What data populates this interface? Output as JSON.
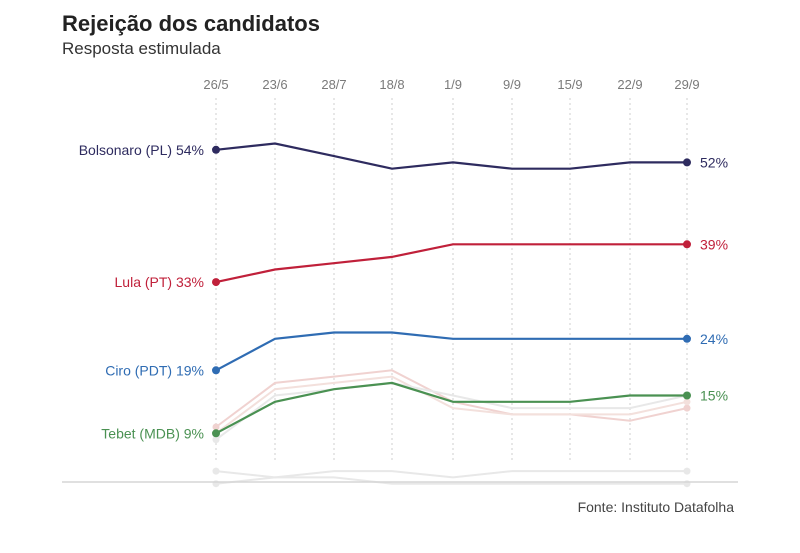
{
  "header": {
    "title": "Rejeição dos candidatos",
    "subtitle": "Resposta estimulada"
  },
  "footer": {
    "source": "Fonte: Instituto Datafolha"
  },
  "chart_data": {
    "type": "line",
    "categories": [
      "26/5",
      "23/6",
      "28/7",
      "18/8",
      "1/9",
      "9/9",
      "15/9",
      "22/9",
      "29/9"
    ],
    "ylim": [
      0,
      60
    ],
    "grid": "vertical dotted",
    "series": [
      {
        "name": "Bolsonaro (PL)",
        "start_label": "Bolsonaro (PL) 54%",
        "end_label": "52%",
        "color": "#2e2b5f",
        "values": [
          54,
          55,
          53,
          51,
          52,
          51,
          51,
          52,
          52
        ]
      },
      {
        "name": "Lula (PT)",
        "start_label": "Lula (PT) 33%",
        "end_label": "39%",
        "color": "#c0203a",
        "values": [
          33,
          35,
          36,
          37,
          39,
          39,
          39,
          39,
          39
        ]
      },
      {
        "name": "Ciro (PDT)",
        "start_label": "Ciro (PDT) 19%",
        "end_label": "24%",
        "color": "#2f6cb3",
        "values": [
          19,
          24,
          25,
          25,
          24,
          24,
          24,
          24,
          24
        ]
      },
      {
        "name": "Tebet (MDB)",
        "start_label": "Tebet (MDB) 9%",
        "end_label": "15%",
        "color": "#4a9152",
        "values": [
          9,
          14,
          16,
          17,
          14,
          14,
          14,
          15,
          15
        ]
      }
    ],
    "background_series": [
      {
        "color": "#f0d2d0",
        "values": [
          10,
          17,
          18,
          19,
          14,
          12,
          12,
          11,
          13
        ]
      },
      {
        "color": "#f3e0dc",
        "values": [
          9,
          16,
          17,
          18,
          13,
          12,
          12,
          12,
          14
        ]
      },
      {
        "color": "#e8e8e8",
        "values": [
          8,
          15,
          16,
          17,
          15,
          13,
          13,
          13,
          15
        ]
      },
      {
        "color": "#e8e8e8",
        "values": [
          3,
          2,
          3,
          3,
          2,
          3,
          3,
          3,
          3
        ]
      },
      {
        "color": "#e8e8e8",
        "values": [
          1,
          2,
          2,
          1,
          1,
          1,
          1,
          1,
          1
        ]
      }
    ]
  }
}
